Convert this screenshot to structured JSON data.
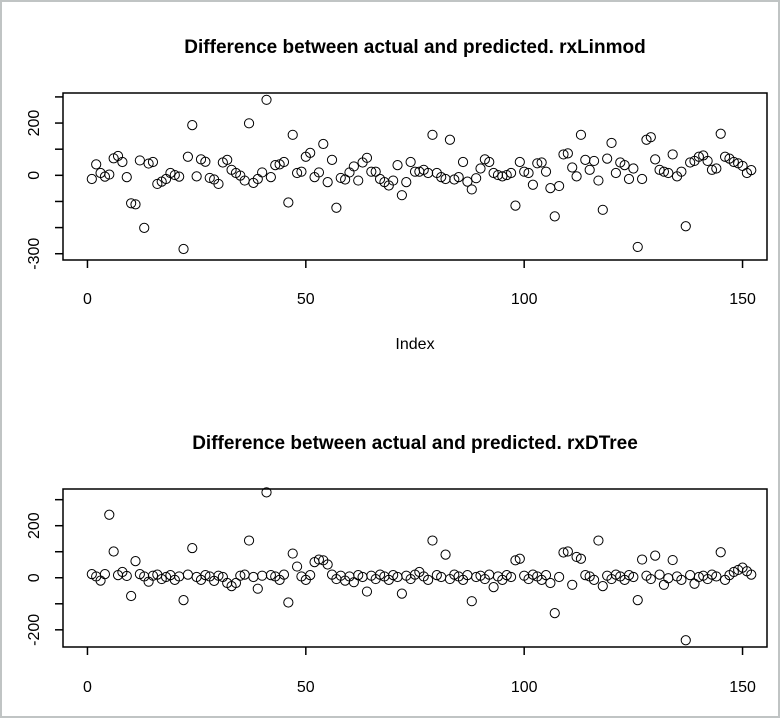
{
  "window": {
    "background_color": "#ffffff",
    "border_color": "#c0c4c4",
    "foreground_color": "#000000"
  },
  "chart_data": [
    {
      "type": "scatter",
      "title": "Difference between actual and predicted. rxLinmod",
      "xlabel": "Index",
      "ylabel": "",
      "marker": "open-circle",
      "grid": false,
      "legend": "none",
      "xlim": [
        -5.6,
        155.6
      ],
      "ylim": [
        -324,
        315
      ],
      "x_ticks": [
        0,
        50,
        100,
        150
      ],
      "x_tick_labels": [
        "0",
        "50",
        "100",
        "150"
      ],
      "y_ticks": [
        300,
        200,
        100,
        0,
        -100,
        -200,
        -300
      ],
      "y_tick_labels": [
        "",
        "200",
        "",
        "0",
        "",
        "",
        "-300"
      ],
      "x_start_index": 1,
      "values": [
        -14,
        42,
        9,
        -5,
        3,
        65,
        74,
        51,
        -7,
        -107,
        -111,
        57,
        -201,
        45,
        51,
        -33,
        -24,
        -14,
        9,
        1,
        -5,
        -282,
        71,
        192,
        -4,
        61,
        52,
        -10,
        -16,
        -33,
        49,
        59,
        21,
        9,
        -1,
        -20,
        199,
        -29,
        -14,
        11,
        289,
        -7,
        39,
        42,
        51,
        -104,
        155,
        9,
        14,
        71,
        86,
        -7,
        11,
        120,
        -26,
        59,
        -124,
        -10,
        -16,
        11,
        34,
        -20,
        49,
        67,
        14,
        14,
        -14,
        -26,
        -39,
        -20,
        39,
        -76,
        -26,
        51,
        14,
        14,
        21,
        9,
        155,
        9,
        -7,
        -14,
        136,
        -16,
        -7,
        51,
        -24,
        -54,
        -11,
        26,
        61,
        51,
        9,
        1,
        -4,
        1,
        9,
        -116,
        51,
        14,
        9,
        -36,
        46,
        49,
        14,
        -49,
        -157,
        -41,
        80,
        84,
        30,
        -4,
        155,
        59,
        21,
        55,
        -20,
        -132,
        64,
        124,
        9,
        49,
        39,
        -14,
        26,
        -274,
        -14,
        136,
        146,
        61,
        21,
        14,
        9,
        80,
        -4,
        14,
        -195,
        49,
        55,
        71,
        76,
        55,
        21,
        26,
        159,
        71,
        64,
        51,
        46,
        36,
        9,
        20
      ]
    },
    {
      "type": "scatter",
      "title": "Difference between actual and predicted. rxDTree",
      "xlabel": "",
      "ylabel": "",
      "marker": "open-circle",
      "grid": false,
      "legend": "none",
      "xlim": [
        -5.6,
        155.6
      ],
      "ylim": [
        -266,
        341
      ],
      "x_ticks": [
        0,
        50,
        100,
        150
      ],
      "x_tick_labels": [
        "0",
        "50",
        "100",
        "150"
      ],
      "y_ticks": [
        300,
        200,
        100,
        0,
        -100,
        -200
      ],
      "y_tick_labels": [
        "",
        "200",
        "",
        "0",
        "",
        "-200"
      ],
      "x_start_index": 1,
      "values": [
        14,
        5,
        -11,
        14,
        242,
        101,
        10,
        22,
        7,
        -70,
        64,
        14,
        5,
        -15,
        8,
        12,
        -5,
        3,
        10,
        -8,
        5,
        -86,
        12,
        114,
        3,
        -8,
        10,
        5,
        -12,
        8,
        3,
        -20,
        -32,
        -20,
        8,
        12,
        143,
        3,
        -42,
        8,
        328,
        10,
        5,
        -8,
        12,
        -95,
        93,
        43,
        5,
        -8,
        10,
        60,
        70,
        67,
        51,
        12,
        -5,
        8,
        -11,
        5,
        -17,
        10,
        3,
        -53,
        8,
        -5,
        12,
        5,
        -8,
        10,
        3,
        -61,
        8,
        -5,
        12,
        22,
        5,
        -8,
        143,
        10,
        3,
        89,
        -5,
        12,
        5,
        -8,
        10,
        -90,
        3,
        8,
        -5,
        12,
        -36,
        5,
        -8,
        10,
        3,
        67,
        73,
        8,
        -5,
        12,
        5,
        -8,
        10,
        -20,
        -136,
        3,
        97,
        101,
        -27,
        80,
        73,
        10,
        5,
        -8,
        143,
        -32,
        8,
        -5,
        12,
        5,
        -8,
        10,
        3,
        -86,
        70,
        8,
        -5,
        85,
        12,
        -27,
        -2,
        68,
        5,
        -8,
        -240,
        10,
        -23,
        3,
        8,
        -5,
        12,
        5,
        98,
        -8,
        10,
        22,
        30,
        39,
        25,
        12
      ]
    }
  ]
}
